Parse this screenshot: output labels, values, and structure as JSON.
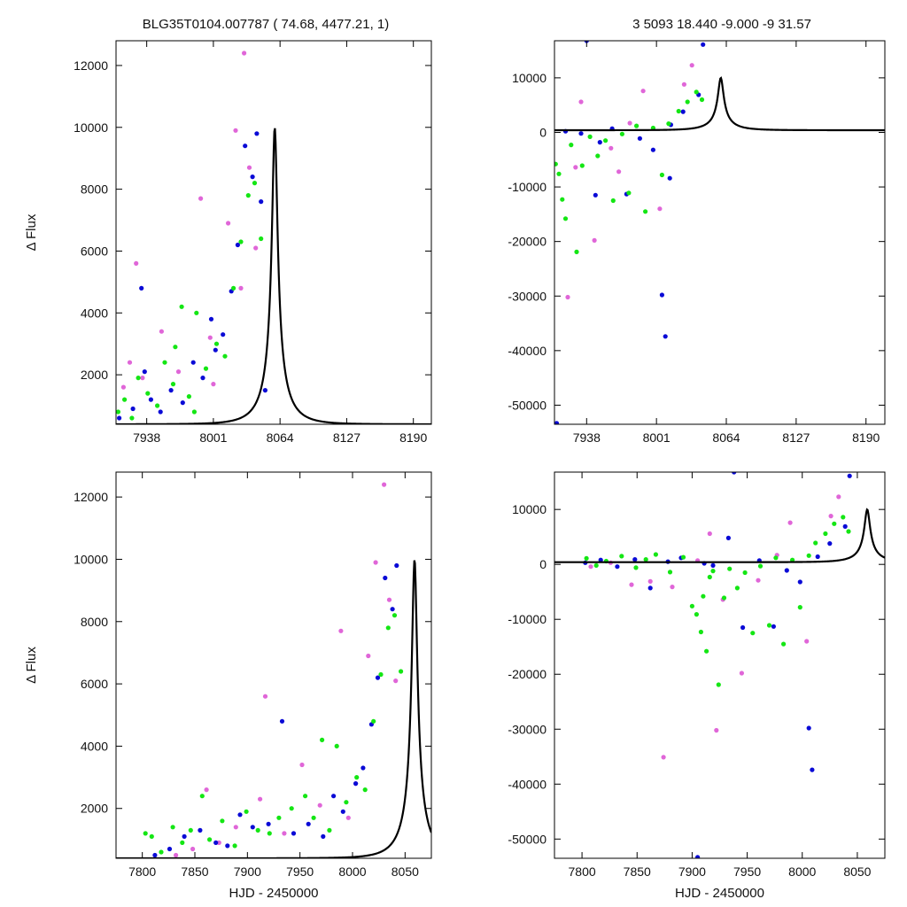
{
  "header": {
    "left": "BLG35T0104.007787 ( 74.68, 4477.21,     1)",
    "right": "3    5093    18.440    -9.000    -9    31.57"
  },
  "colors": {
    "magenta": "#e066d8",
    "blue": "#0a0ad6",
    "green": "#14e614",
    "model": "#000000",
    "frame": "#000000"
  },
  "model": {
    "t0": 8059,
    "tE": 25,
    "u0": 0.1,
    "base": 400,
    "peak": 10000
  },
  "chart_data": [
    {
      "type": "scatter",
      "panel": "top-left",
      "xlabel": "",
      "ylabel": "Δ Flux",
      "xlim": [
        7909,
        8207
      ],
      "ylim": [
        400,
        12800
      ],
      "xticks": [
        7938,
        8001,
        8064,
        8127,
        8190
      ],
      "yticks": [
        2000,
        4000,
        6000,
        8000,
        10000,
        12000
      ],
      "xtick_labels": [
        "7938",
        "8001",
        "8064",
        "8127",
        "8190"
      ],
      "ytick_labels": [
        "2000",
        "4000",
        "6000",
        "8000",
        "10000",
        "12000"
      ],
      "series": [
        {
          "color": "magenta",
          "x": [
            7916,
            7922,
            7928,
            7934,
            7952,
            7968,
            7989,
            8001,
            8015,
            8022,
            8030,
            8035,
            8041,
            7998,
            8027
          ],
          "y": [
            1600,
            2400,
            5600,
            1900,
            3400,
            2100,
            7700,
            1700,
            6900,
            9900,
            12400,
            8700,
            6100,
            3200,
            4800
          ]
        },
        {
          "color": "blue",
          "x": [
            7912,
            7925,
            7933,
            7942,
            7951,
            7961,
            7972,
            7982,
            7991,
            8003,
            8010,
            8018,
            8024,
            8031,
            8038,
            8042,
            8046,
            8050,
            7936,
            7999
          ],
          "y": [
            600,
            900,
            4800,
            1200,
            800,
            1500,
            1100,
            2400,
            1900,
            2800,
            3300,
            4700,
            6200,
            9400,
            8400,
            9800,
            7600,
            1500,
            2100,
            3800
          ]
        },
        {
          "color": "green",
          "x": [
            7911,
            7917,
            7924,
            7930,
            7939,
            7948,
            7955,
            7963,
            7971,
            7978,
            7985,
            7994,
            8004,
            8012,
            8020,
            8027,
            8034,
            8040,
            8046,
            7965,
            7983
          ],
          "y": [
            800,
            1200,
            600,
            1900,
            1400,
            1000,
            2400,
            1700,
            4200,
            1300,
            4000,
            2200,
            3000,
            2600,
            4800,
            6300,
            7800,
            8200,
            6400,
            2900,
            800
          ]
        }
      ]
    },
    {
      "type": "scatter",
      "panel": "top-right",
      "xlabel": "",
      "ylabel": "",
      "xlim": [
        7909,
        8207
      ],
      "ylim": [
        -53500,
        16800
      ],
      "xticks": [
        7938,
        8001,
        8064,
        8127,
        8190
      ],
      "yticks": [
        -50000,
        -40000,
        -30000,
        -20000,
        -10000,
        0,
        10000
      ],
      "xtick_labels": [
        "7938",
        "8001",
        "8064",
        "8127",
        "8190"
      ],
      "ytick_labels": [
        "-50000",
        "-40000",
        "-30000",
        "-20000",
        "-10000",
        "0",
        "10000"
      ],
      "series": [
        {
          "color": "magenta",
          "x": [
            7921,
            7928,
            7945,
            7960,
            7977,
            7989,
            8004,
            8026,
            8033,
            7933,
            7967
          ],
          "y": [
            -30200,
            -6400,
            -19800,
            -2900,
            1700,
            7600,
            -14000,
            8800,
            12300,
            5600,
            -7200
          ]
        },
        {
          "color": "blue",
          "x": [
            7911,
            7919,
            7933,
            7938,
            7946,
            7961,
            7974,
            7986,
            7998,
            8006,
            8009,
            8014,
            8025,
            8039,
            8043,
            7950,
            8013
          ],
          "y": [
            -53300,
            200,
            -200,
            16800,
            -11500,
            700,
            -11300,
            -1100,
            -3200,
            -29800,
            -37400,
            1400,
            3800,
            6900,
            16100,
            -1800,
            -8400
          ]
        },
        {
          "color": "green",
          "x": [
            7910,
            7913,
            7916,
            7919,
            7924,
            7929,
            7934,
            7941,
            7948,
            7955,
            7962,
            7970,
            7976,
            7983,
            7991,
            7998,
            8006,
            8012,
            8021,
            8029,
            8037,
            8042
          ],
          "y": [
            -5800,
            -7600,
            -12300,
            -15800,
            -2300,
            -21900,
            -6100,
            -800,
            -4300,
            -1500,
            -12500,
            -300,
            -11100,
            1200,
            -14500,
            800,
            -7800,
            1600,
            3900,
            5600,
            7400,
            6000
          ]
        }
      ]
    },
    {
      "type": "scatter",
      "panel": "bottom-left",
      "xlabel": "HJD - 2450000",
      "ylabel": "Δ Flux",
      "xlim": [
        7775,
        8075
      ],
      "ylim": [
        400,
        12800
      ],
      "xticks": [
        7800,
        7850,
        7900,
        7950,
        8000,
        8050
      ],
      "yticks": [
        2000,
        4000,
        6000,
        8000,
        10000,
        12000
      ],
      "xtick_labels": [
        "7800",
        "7850",
        "7900",
        "7950",
        "8000",
        "8050"
      ],
      "ytick_labels": [
        "2000",
        "4000",
        "6000",
        "8000",
        "10000",
        "12000"
      ],
      "series": [
        {
          "color": "magenta",
          "x": [
            7832,
            7848,
            7861,
            7873,
            7889,
            7912,
            7917,
            7935,
            7952,
            7969,
            7989,
            7996,
            8003,
            8015,
            8022,
            8030,
            8035,
            8041
          ],
          "y": [
            500,
            700,
            2600,
            900,
            1400,
            2300,
            5600,
            1200,
            3400,
            2100,
            7700,
            1700,
            2800,
            6900,
            9900,
            12400,
            8700,
            6100
          ]
        },
        {
          "color": "blue",
          "x": [
            7812,
            7826,
            7840,
            7855,
            7870,
            7881,
            7893,
            7905,
            7920,
            7933,
            7944,
            7958,
            7972,
            7982,
            7991,
            8003,
            8010,
            8018,
            8024,
            8031,
            8038,
            8042
          ],
          "y": [
            500,
            700,
            1100,
            1300,
            900,
            800,
            1800,
            1400,
            1500,
            4800,
            1200,
            1500,
            1100,
            2400,
            1900,
            2800,
            3300,
            4700,
            6200,
            9400,
            8400,
            9800
          ]
        },
        {
          "color": "green",
          "x": [
            7803,
            7809,
            7818,
            7829,
            7838,
            7846,
            7857,
            7864,
            7876,
            7888,
            7899,
            7910,
            7921,
            7930,
            7942,
            7955,
            7963,
            7971,
            7978,
            7985,
            7994,
            8004,
            8012,
            8020,
            8027,
            8034,
            8040,
            8046
          ],
          "y": [
            1200,
            1100,
            600,
            1400,
            900,
            1300,
            2400,
            1000,
            1600,
            800,
            1900,
            1300,
            1200,
            1700,
            2000,
            2400,
            1700,
            4200,
            1300,
            4000,
            2200,
            3000,
            2600,
            4800,
            6300,
            7800,
            8200,
            6400
          ]
        }
      ]
    },
    {
      "type": "scatter",
      "panel": "bottom-right",
      "xlabel": "HJD - 2450000",
      "ylabel": "",
      "xlim": [
        7775,
        8075
      ],
      "ylim": [
        -53500,
        16800
      ],
      "xticks": [
        7800,
        7850,
        7900,
        7950,
        8000,
        8050
      ],
      "yticks": [
        -50000,
        -40000,
        -30000,
        -20000,
        -10000,
        0,
        10000
      ],
      "xtick_labels": [
        "7800",
        "7850",
        "7900",
        "7950",
        "8000",
        "8050"
      ],
      "ytick_labels": [
        "-50000",
        "-40000",
        "-30000",
        "-20000",
        "-10000",
        "0",
        "10000"
      ],
      "series": [
        {
          "color": "magenta",
          "x": [
            7808,
            7826,
            7845,
            7862,
            7874,
            7882,
            7905,
            7916,
            7922,
            7928,
            7945,
            7960,
            7977,
            7989,
            8004,
            8026,
            8033
          ],
          "y": [
            -400,
            300,
            -3700,
            -3100,
            -35100,
            -4100,
            700,
            5600,
            -30200,
            -6400,
            -19800,
            -2900,
            1700,
            7600,
            -14000,
            8800,
            12300
          ]
        },
        {
          "color": "blue",
          "x": [
            7803,
            7817,
            7832,
            7848,
            7862,
            7878,
            7890,
            7905,
            7911,
            7919,
            7933,
            7938,
            7946,
            7961,
            7974,
            7986,
            7998,
            8006,
            8009,
            8014,
            8025,
            8039,
            8043
          ],
          "y": [
            300,
            800,
            -400,
            900,
            -4300,
            500,
            1200,
            -53300,
            200,
            -200,
            4800,
            16800,
            -11500,
            700,
            -11300,
            -1100,
            -3200,
            -29800,
            -37400,
            1400,
            3800,
            6900,
            16100
          ]
        },
        {
          "color": "green",
          "x": [
            7804,
            7813,
            7822,
            7836,
            7849,
            7858,
            7867,
            7880,
            7892,
            7900,
            7904,
            7908,
            7910,
            7913,
            7916,
            7919,
            7924,
            7929,
            7934,
            7941,
            7948,
            7955,
            7962,
            7970,
            7976,
            7983,
            7991,
            7998,
            8006,
            8012,
            8021,
            8029,
            8037,
            8042
          ],
          "y": [
            1100,
            -200,
            600,
            1500,
            -600,
            900,
            1800,
            -1400,
            1300,
            -7600,
            -9100,
            -12300,
            -5800,
            -15800,
            -2300,
            -1200,
            -21900,
            -6100,
            -800,
            -4300,
            -1500,
            -12500,
            -300,
            -11100,
            1200,
            -14500,
            800,
            -7800,
            1600,
            3900,
            5600,
            7400,
            8600,
            6000
          ]
        }
      ]
    }
  ]
}
